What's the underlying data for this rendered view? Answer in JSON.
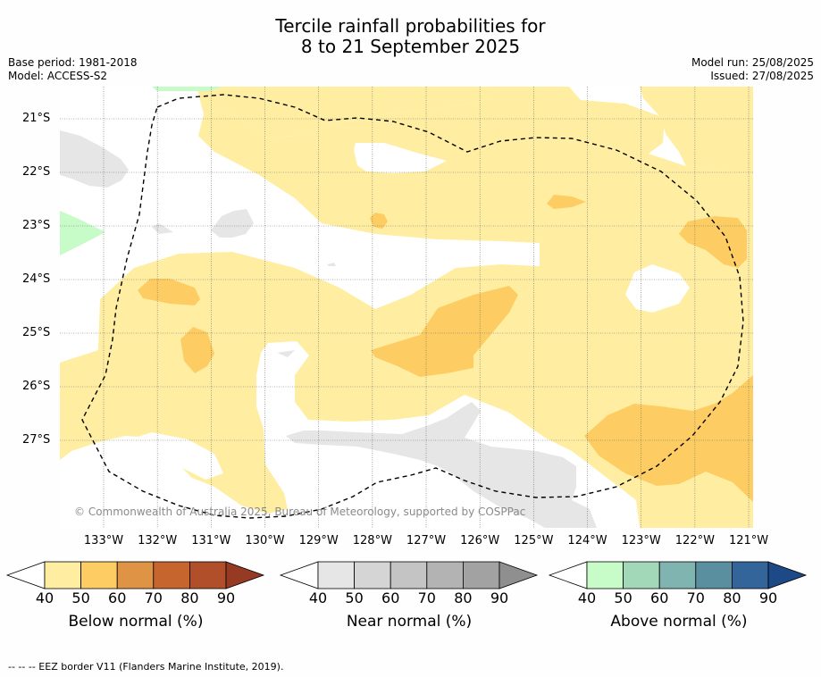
{
  "title_line1": "Tercile rainfall probabilities for",
  "title_line2": "8 to 21 September 2025",
  "base_period": "Base period: 1981-2018",
  "model": "Model: ACCESS-S2",
  "model_run": "Model run: 25/08/2025",
  "issued": "Issued: 27/08/2025",
  "copyright": "© Commonwealth of Australia 2025, Bureau of Meteorology, supported by COSPPac",
  "footnote": "-- -- -- EEZ border V11 (Flanders Marine Institute, 2019).",
  "lon_labels": [
    "133°W",
    "132°W",
    "131°W",
    "130°W",
    "129°W",
    "128°W",
    "127°W",
    "126°W",
    "125°W",
    "124°W",
    "123°W",
    "122°W",
    "121°W"
  ],
  "lat_labels": [
    "21°S",
    "22°S",
    "23°S",
    "24°S",
    "25°S",
    "26°S",
    "27°S"
  ],
  "colorbars": [
    {
      "name": "below",
      "label": "Below normal (%)",
      "ticks": [
        "40",
        "50",
        "60",
        "70",
        "80",
        "90"
      ],
      "colors": [
        "#ffffff",
        "#ffeea1",
        "#fdcd64",
        "#df9445",
        "#c7652f",
        "#b04f29",
        "#973a23"
      ]
    },
    {
      "name": "near",
      "label": "Near normal (%)",
      "ticks": [
        "40",
        "50",
        "60",
        "70",
        "80",
        "90"
      ],
      "colors": [
        "#ffffff",
        "#e6e6e6",
        "#d5d5d5",
        "#c4c4c4",
        "#b3b3b3",
        "#a2a2a2",
        "#8f8f8f"
      ]
    },
    {
      "name": "above",
      "label": "Above normal (%)",
      "ticks": [
        "40",
        "50",
        "60",
        "70",
        "80",
        "90"
      ],
      "colors": [
        "#ffffff",
        "#c7fcc8",
        "#a2d7b8",
        "#7fb4b0",
        "#5a8fa0",
        "#33649a",
        "#1d4a86"
      ]
    }
  ],
  "colors": {
    "below_50": "#ffeea1",
    "below_60": "#fdcd64",
    "near_50": "#e6e6e6",
    "above_50": "#c7fcc8"
  }
}
